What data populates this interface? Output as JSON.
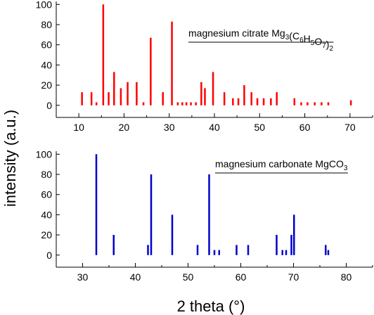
{
  "y_axis_title": "intensity (a.u.)",
  "x_axis_title": "2 theta (°)",
  "chart_data": [
    {
      "type": "bar",
      "label": {
        "parts": [
          {
            "text": "magnesium citrate Mg",
            "sub": false
          },
          {
            "text": "3",
            "sub": true
          },
          {
            "text": "(C",
            "sub": false
          },
          {
            "text": "6",
            "sub": true
          },
          {
            "text": "H",
            "sub": false
          },
          {
            "text": "5",
            "sub": true
          },
          {
            "text": "O",
            "sub": false
          },
          {
            "text": "7",
            "sub": true
          },
          {
            "text": ")",
            "sub": false
          },
          {
            "text": "2",
            "sub": true
          }
        ]
      },
      "color": "#ff0000",
      "xlim": [
        5,
        75
      ],
      "ylim": [
        -12,
        103
      ],
      "xticks": [
        10,
        20,
        30,
        40,
        50,
        60,
        70
      ],
      "yticks": [
        0,
        20,
        40,
        60,
        80,
        100
      ],
      "x": [
        10.7,
        12.8,
        13.9,
        15.4,
        16.6,
        17.8,
        19.3,
        20.8,
        22.8,
        24.3,
        25.9,
        28.6,
        30.6,
        31.9,
        32.9,
        33.8,
        34.8,
        35.9,
        37.1,
        37.9,
        39.7,
        42.2,
        44.1,
        45.3,
        46.6,
        48.2,
        49.5,
        50.9,
        52.5,
        53.8,
        57.7,
        59.2,
        60.6,
        62.2,
        63.7,
        65.2,
        70.2
      ],
      "y": [
        13,
        13,
        3,
        100,
        13,
        33,
        17,
        23,
        23,
        3,
        67,
        13,
        83,
        3,
        3,
        3,
        3,
        3,
        23,
        17,
        33,
        13,
        7,
        7,
        20,
        13,
        7,
        7,
        7,
        13,
        7,
        3,
        3,
        3,
        3,
        3,
        5
      ]
    },
    {
      "type": "bar",
      "label": {
        "parts": [
          {
            "text": "magnesium carbonate MgCO",
            "sub": false
          },
          {
            "text": "3",
            "sub": true
          }
        ]
      },
      "color": "#0000cc",
      "xlim": [
        25,
        85
      ],
      "ylim": [
        -12,
        103
      ],
      "xticks": [
        30,
        40,
        50,
        60,
        70,
        80
      ],
      "yticks": [
        0,
        20,
        40,
        60,
        80,
        100
      ],
      "x": [
        32.6,
        35.9,
        42.4,
        43.0,
        47.0,
        51.8,
        54.0,
        55.0,
        55.9,
        59.2,
        61.4,
        66.8,
        67.9,
        68.6,
        69.6,
        70.1,
        76.1,
        76.6
      ],
      "y": [
        100,
        20,
        10,
        80,
        40,
        10,
        80,
        5,
        5,
        10,
        10,
        20,
        5,
        5,
        20,
        40,
        10,
        5
      ]
    }
  ]
}
